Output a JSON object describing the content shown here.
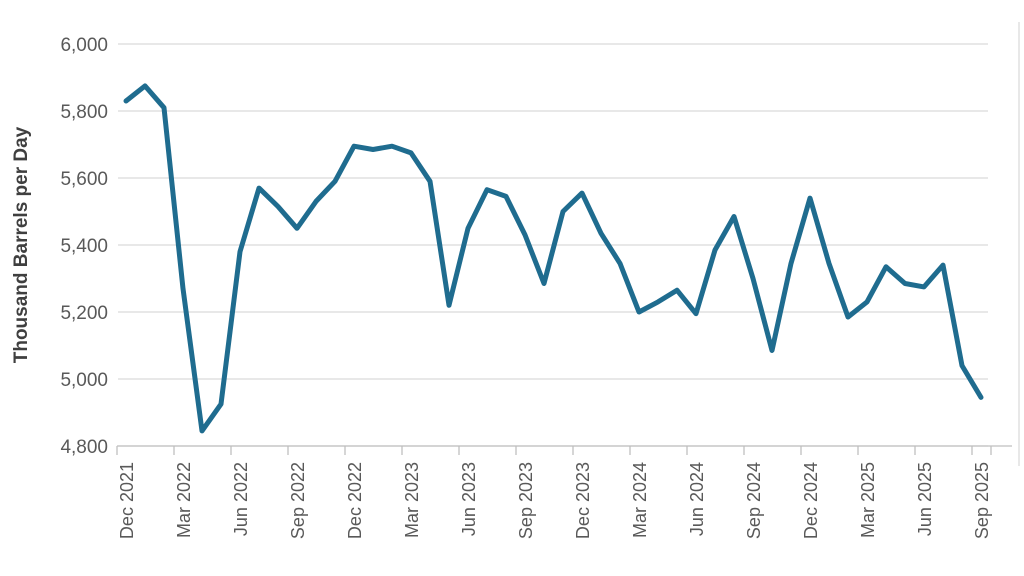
{
  "chart_data": {
    "type": "line",
    "title": "",
    "xlabel": "",
    "ylabel": "Thousand Barrels per Day",
    "ylim": [
      4800,
      6000
    ],
    "grid": "horizontal",
    "legend": "none",
    "yticks": [
      6000,
      5800,
      5600,
      5400,
      5200,
      5000,
      4800
    ],
    "ytick_labels": [
      "6,000",
      "5,800",
      "5,600",
      "5,400",
      "5,200",
      "5,000",
      "4,800"
    ],
    "xtick_labels": [
      "Dec 2021",
      "Mar 2022",
      "Jun 2022",
      "Sep 2022",
      "Dec 2022",
      "Mar 2023",
      "Jun 2023",
      "Sep 2023",
      "Dec 2023",
      "Mar 2024",
      "Jun 2024",
      "Sep 2024",
      "Dec 2024",
      "Mar 2025",
      "Jun 2025",
      "Sep 2025"
    ],
    "x": [
      "Dec 2021",
      "Jan 2022",
      "Feb 2022",
      "Mar 2022",
      "Apr 2022",
      "May 2022",
      "Jun 2022",
      "Jul 2022",
      "Aug 2022",
      "Sep 2022",
      "Oct 2022",
      "Nov 2022",
      "Dec 2022",
      "Jan 2023",
      "Feb 2023",
      "Mar 2023",
      "Apr 2023",
      "May 2023",
      "Jun 2023",
      "Jul 2023",
      "Aug 2023",
      "Sep 2023",
      "Oct 2023",
      "Nov 2023",
      "Dec 2023",
      "Jan 2024",
      "Feb 2024",
      "Mar 2024",
      "Apr 2024",
      "May 2024",
      "Jun 2024",
      "Jul 2024",
      "Aug 2024",
      "Sep 2024",
      "Oct 2024",
      "Nov 2024",
      "Dec 2024",
      "Jan 2025",
      "Feb 2025",
      "Mar 2025",
      "Apr 2025",
      "May 2025",
      "Jun 2025",
      "Jul 2025",
      "Aug 2025",
      "Sep 2025"
    ],
    "series": [
      {
        "name": "Thousand Barrels per Day",
        "values": [
          5830,
          5875,
          5810,
          5270,
          4845,
          4925,
          5380,
          5570,
          5515,
          5450,
          5530,
          5590,
          5695,
          5685,
          5695,
          5675,
          5590,
          5220,
          5450,
          5565,
          5545,
          5430,
          5285,
          5500,
          5555,
          5435,
          5345,
          5200,
          5230,
          5265,
          5195,
          5385,
          5485,
          5300,
          5085,
          5345,
          5540,
          5345,
          5185,
          5230,
          5335,
          5285,
          5275,
          5340,
          5040,
          4945
        ]
      }
    ],
    "line_color": "#1F6C8F",
    "grid_color": "#D9D9D9",
    "axis_color": "#BFBFBF",
    "tick_text_color": "#595959",
    "axis_title_color": "#3F3F3F",
    "edge_line_color": "#E8E8E8"
  }
}
